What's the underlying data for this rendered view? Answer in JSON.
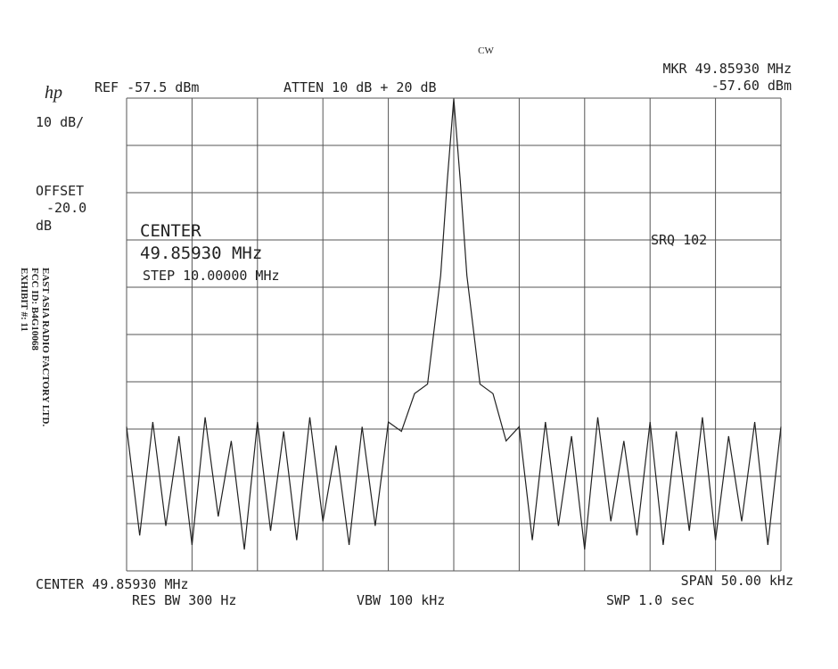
{
  "chart_data": {
    "type": "line",
    "title": "CW",
    "logo": "hp",
    "annotations": [
      "REF -57.5 dBm",
      "ATTEN 10 dB + 20 dB",
      "MKR 49.85930 MHz",
      "-57.60 dBm",
      "10 dB/",
      "OFFSET",
      "-20.0",
      "dB",
      "CENTER",
      "49.85930 MHz",
      "STEP 10.00000 MHz",
      "SRQ 102",
      "CENTER 49.85930 MHz",
      "SPAN 50.00 kHz",
      "RES BW 300 Hz",
      "VBW 100 kHz",
      "SWP 1.0 sec"
    ],
    "stamp": [
      "EAST ASIA RADIO FACTORY LTD.",
      "FCC ID: B4G10068",
      "EXHIBIT #: 11"
    ],
    "color": "#222222",
    "xlim": [
      49.8343,
      49.8843
    ],
    "ylim": [
      -157.5,
      -57.5
    ],
    "x": [
      49.8343,
      49.8353,
      49.8363,
      49.8373,
      49.8383,
      49.8393,
      49.8403,
      49.8413,
      49.8423,
      49.8433,
      49.8443,
      49.8453,
      49.8463,
      49.8473,
      49.8483,
      49.8493,
      49.8503,
      49.8513,
      49.8523,
      49.8533,
      49.8543,
      49.8553,
      49.8563,
      49.8573,
      49.8583,
      49.8588,
      49.8593,
      49.8598,
      49.8603,
      49.8613,
      49.8623,
      49.8633,
      49.8643,
      49.8653,
      49.8663,
      49.8673,
      49.8683,
      49.8693,
      49.8703,
      49.8713,
      49.8723,
      49.8733,
      49.8743,
      49.8753,
      49.8763,
      49.8773,
      49.8783,
      49.8793,
      49.8803,
      49.8813,
      49.8823,
      49.8833,
      49.8843
    ],
    "values": [
      -127,
      -150,
      -126,
      -148,
      -129,
      -152,
      -125,
      -146,
      -130,
      -153,
      -126,
      -149,
      -128,
      -151,
      -125,
      -147,
      -131,
      -152,
      -127,
      -148,
      -126,
      -128,
      -120,
      -118,
      -95,
      -75,
      -57.6,
      -75,
      -95,
      -118,
      -120,
      -130,
      -127,
      -151,
      -126,
      -148,
      -129,
      -153,
      -125,
      -147,
      -130,
      -150,
      -126,
      -152,
      -128,
      -149,
      -125,
      -151,
      -129,
      -147,
      -126,
      -152,
      -127
    ]
  }
}
